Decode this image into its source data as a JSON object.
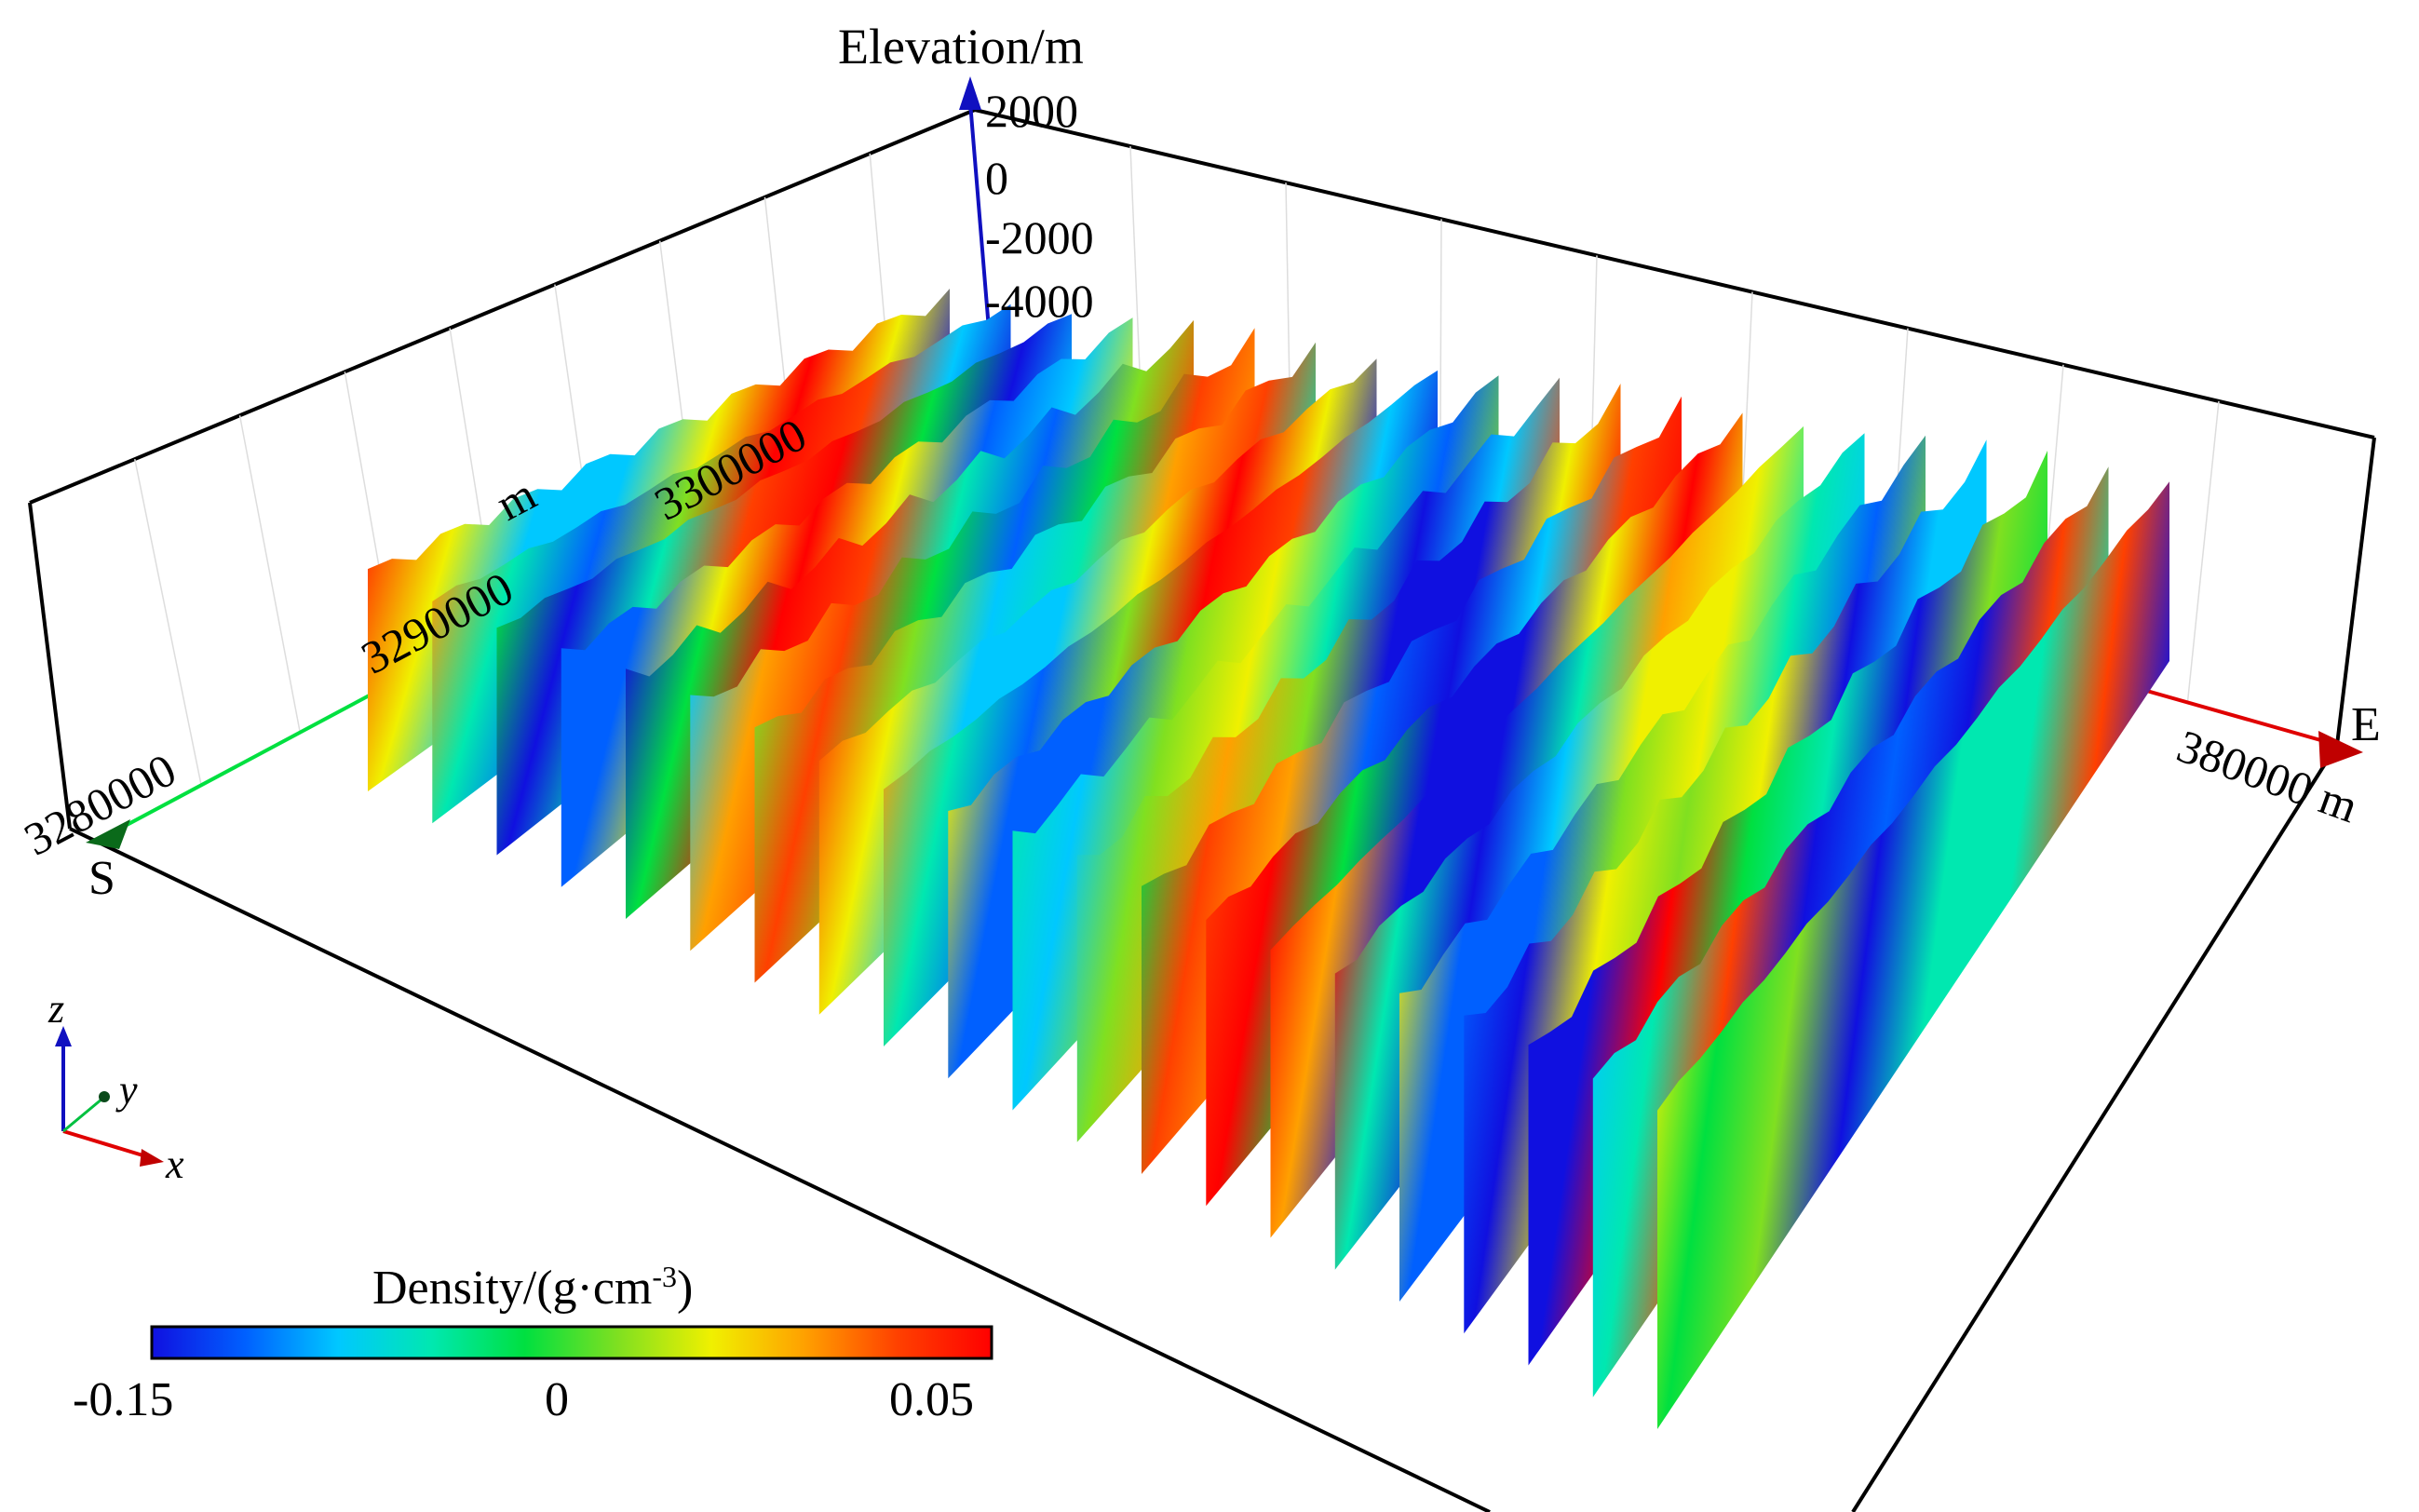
{
  "axes": {
    "z_title": "Elevation/m",
    "z_ticks": [
      "2000",
      "0",
      "-2000",
      "-4000"
    ],
    "y_unit": "m",
    "y_ticks": [
      "3280000",
      "3290000",
      "3300000"
    ],
    "x_tick": "380000 m",
    "south_label": "S",
    "east_label": "E",
    "x_axis_color": "#e00000",
    "y_axis_color": "#00e040",
    "z_axis_color": "#1010c0"
  },
  "orientation": {
    "z": "z",
    "y": "y",
    "x": "x"
  },
  "colorbar": {
    "title_main": "Density/(g·cm",
    "title_sup": "-3",
    "title_end": ")",
    "min_label": "-0.15",
    "mid_label": "0",
    "max_label": "0.05",
    "colors": [
      "#1010e0",
      "#0060ff",
      "#00c8ff",
      "#00e8b0",
      "#00e040",
      "#80e020",
      "#f0f000",
      "#ffa000",
      "#ff4000",
      "#ff0000"
    ]
  },
  "sections": {
    "count": 21,
    "colormap": "jet"
  }
}
